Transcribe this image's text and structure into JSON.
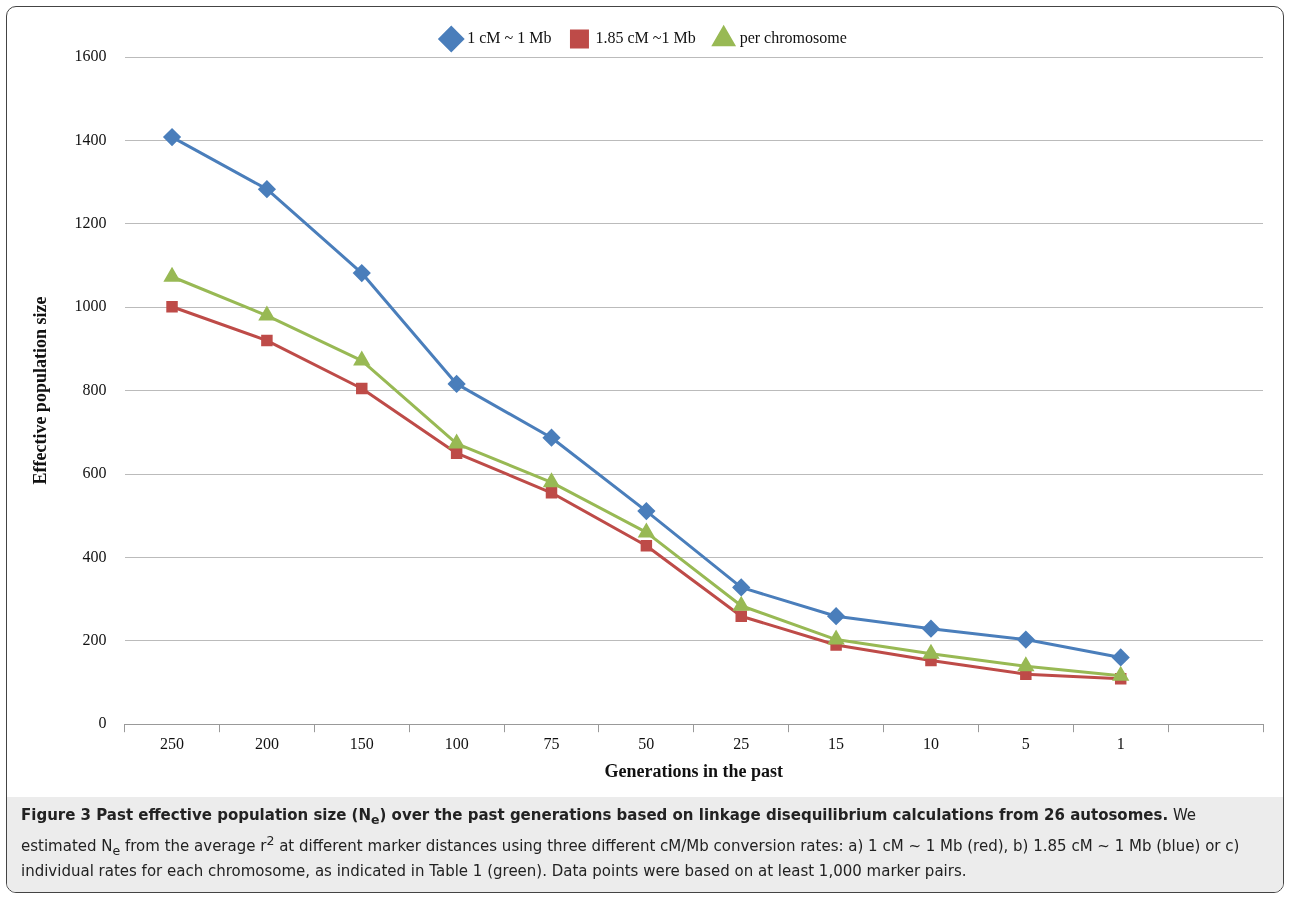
{
  "chart_data": {
    "type": "line",
    "xlabel": "Generations in the past",
    "ylabel": "Effective population size",
    "categories": [
      "250",
      "200",
      "150",
      "100",
      "75",
      "50",
      "25",
      "15",
      "10",
      "5",
      "1",
      null
    ],
    "series": [
      {
        "name": "1 cM ~ 1 Mb",
        "color": "#4a7ebb",
        "marker": "diamond",
        "values": [
          1408,
          1283,
          1082,
          816,
          687,
          511,
          328,
          259,
          229,
          203,
          160,
          null
        ]
      },
      {
        "name": "1.85 cM ~1 Mb",
        "color": "#be4b48",
        "marker": "square",
        "values": [
          1001,
          920,
          805,
          650,
          555,
          428,
          259,
          190,
          153,
          120,
          109,
          null
        ]
      },
      {
        "name": "per chromosome",
        "color": "#98b954",
        "marker": "triangle",
        "values": [
          1073,
          980,
          872,
          673,
          580,
          460,
          284,
          203,
          169,
          139,
          116,
          null
        ]
      }
    ],
    "ylim": [
      0,
      1600
    ],
    "yticks": [
      0,
      200,
      400,
      600,
      800,
      1000,
      1200,
      1400,
      1600
    ],
    "grid": "y",
    "legend": "top",
    "line_style": "solid",
    "annotations": [
      "Figure 3 Past effective population size (N$_{e}$) over the past generations based on linkage disequilibrium calculations from 26 autosomes.",
      "We estimated N$_{e}$ from the average r$^{2}$ at different marker distances using three different cM/Mb conversion rates: a) 1 cM ~ 1 Mb (red), b) 1.85 cM ~ 1 Mb (blue) or c) individual rates for each chromosome, as indicated in Table 1 (green). Data points were based on at least 1,000 marker pairs."
    ]
  }
}
